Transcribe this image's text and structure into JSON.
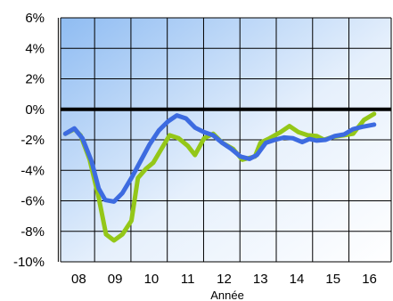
{
  "chart_data": {
    "type": "line",
    "title": "",
    "xlabel": "Année",
    "ylabel": "",
    "xlim": [
      2007.5,
      2016.6
    ],
    "ylim": [
      -10,
      6
    ],
    "x_ticks": [
      {
        "value": 2008,
        "label": "08"
      },
      {
        "value": 2009,
        "label": "09"
      },
      {
        "value": 2010,
        "label": "10"
      },
      {
        "value": 2011,
        "label": "11"
      },
      {
        "value": 2012,
        "label": "12"
      },
      {
        "value": 2013,
        "label": "13"
      },
      {
        "value": 2014,
        "label": "14"
      },
      {
        "value": 2015,
        "label": "15"
      },
      {
        "value": 2016,
        "label": "16"
      }
    ],
    "y_ticks": [
      {
        "value": 6,
        "label": "6%"
      },
      {
        "value": 4,
        "label": "4%"
      },
      {
        "value": 2,
        "label": "2%"
      },
      {
        "value": 0,
        "label": "0%"
      },
      {
        "value": -2,
        "label": "-2%"
      },
      {
        "value": -4,
        "label": "-4%"
      },
      {
        "value": -6,
        "label": "-6%"
      },
      {
        "value": -8,
        "label": "-8%"
      },
      {
        "value": -10,
        "label": "-10%"
      }
    ],
    "grid": true,
    "zero_line": true,
    "background": {
      "top_color": "#8fbcf2",
      "bottom_color": "#ffffff"
    },
    "series": [
      {
        "color": "#94c718",
        "points": [
          [
            2007.63,
            -1.6
          ],
          [
            2007.88,
            -1.3
          ],
          [
            2008.05,
            -1.7
          ],
          [
            2008.3,
            -3.3
          ],
          [
            2008.55,
            -5.8
          ],
          [
            2008.75,
            -8.2
          ],
          [
            2008.97,
            -8.6
          ],
          [
            2009.2,
            -8.2
          ],
          [
            2009.45,
            -7.3
          ],
          [
            2009.63,
            -4.5
          ],
          [
            2009.85,
            -3.9
          ],
          [
            2010.05,
            -3.5
          ],
          [
            2010.25,
            -2.7
          ],
          [
            2010.5,
            -1.7
          ],
          [
            2010.75,
            -1.9
          ],
          [
            2011.0,
            -2.4
          ],
          [
            2011.2,
            -3.0
          ],
          [
            2011.45,
            -1.9
          ],
          [
            2011.7,
            -1.6
          ],
          [
            2011.95,
            -2.2
          ],
          [
            2012.25,
            -2.6
          ],
          [
            2012.5,
            -3.3
          ],
          [
            2012.85,
            -3.1
          ],
          [
            2013.0,
            -2.2
          ],
          [
            2013.25,
            -1.9
          ],
          [
            2013.55,
            -1.5
          ],
          [
            2013.8,
            -1.1
          ],
          [
            2014.05,
            -1.5
          ],
          [
            2014.3,
            -1.7
          ],
          [
            2014.55,
            -1.75
          ],
          [
            2014.75,
            -2.0
          ],
          [
            2015.0,
            -1.8
          ],
          [
            2015.3,
            -1.7
          ],
          [
            2015.55,
            -1.6
          ],
          [
            2015.85,
            -0.7
          ],
          [
            2016.13,
            -0.3
          ]
        ]
      },
      {
        "color": "#3d6be0",
        "points": [
          [
            2007.63,
            -1.6
          ],
          [
            2007.88,
            -1.25
          ],
          [
            2008.1,
            -1.9
          ],
          [
            2008.35,
            -3.4
          ],
          [
            2008.55,
            -5.2
          ],
          [
            2008.73,
            -5.95
          ],
          [
            2008.97,
            -6.05
          ],
          [
            2009.2,
            -5.5
          ],
          [
            2009.45,
            -4.5
          ],
          [
            2009.7,
            -3.4
          ],
          [
            2009.95,
            -2.3
          ],
          [
            2010.2,
            -1.4
          ],
          [
            2010.45,
            -0.8
          ],
          [
            2010.7,
            -0.4
          ],
          [
            2010.95,
            -0.6
          ],
          [
            2011.2,
            -1.2
          ],
          [
            2011.45,
            -1.5
          ],
          [
            2011.7,
            -1.7
          ],
          [
            2011.95,
            -2.2
          ],
          [
            2012.2,
            -2.6
          ],
          [
            2012.45,
            -3.1
          ],
          [
            2012.7,
            -3.25
          ],
          [
            2012.9,
            -3.0
          ],
          [
            2013.15,
            -2.2
          ],
          [
            2013.4,
            -2.0
          ],
          [
            2013.65,
            -1.85
          ],
          [
            2013.9,
            -1.9
          ],
          [
            2014.15,
            -2.15
          ],
          [
            2014.35,
            -1.95
          ],
          [
            2014.55,
            -2.05
          ],
          [
            2014.8,
            -2.0
          ],
          [
            2015.05,
            -1.75
          ],
          [
            2015.3,
            -1.65
          ],
          [
            2015.55,
            -1.3
          ],
          [
            2015.8,
            -1.15
          ],
          [
            2016.13,
            -1.0
          ]
        ]
      }
    ]
  }
}
